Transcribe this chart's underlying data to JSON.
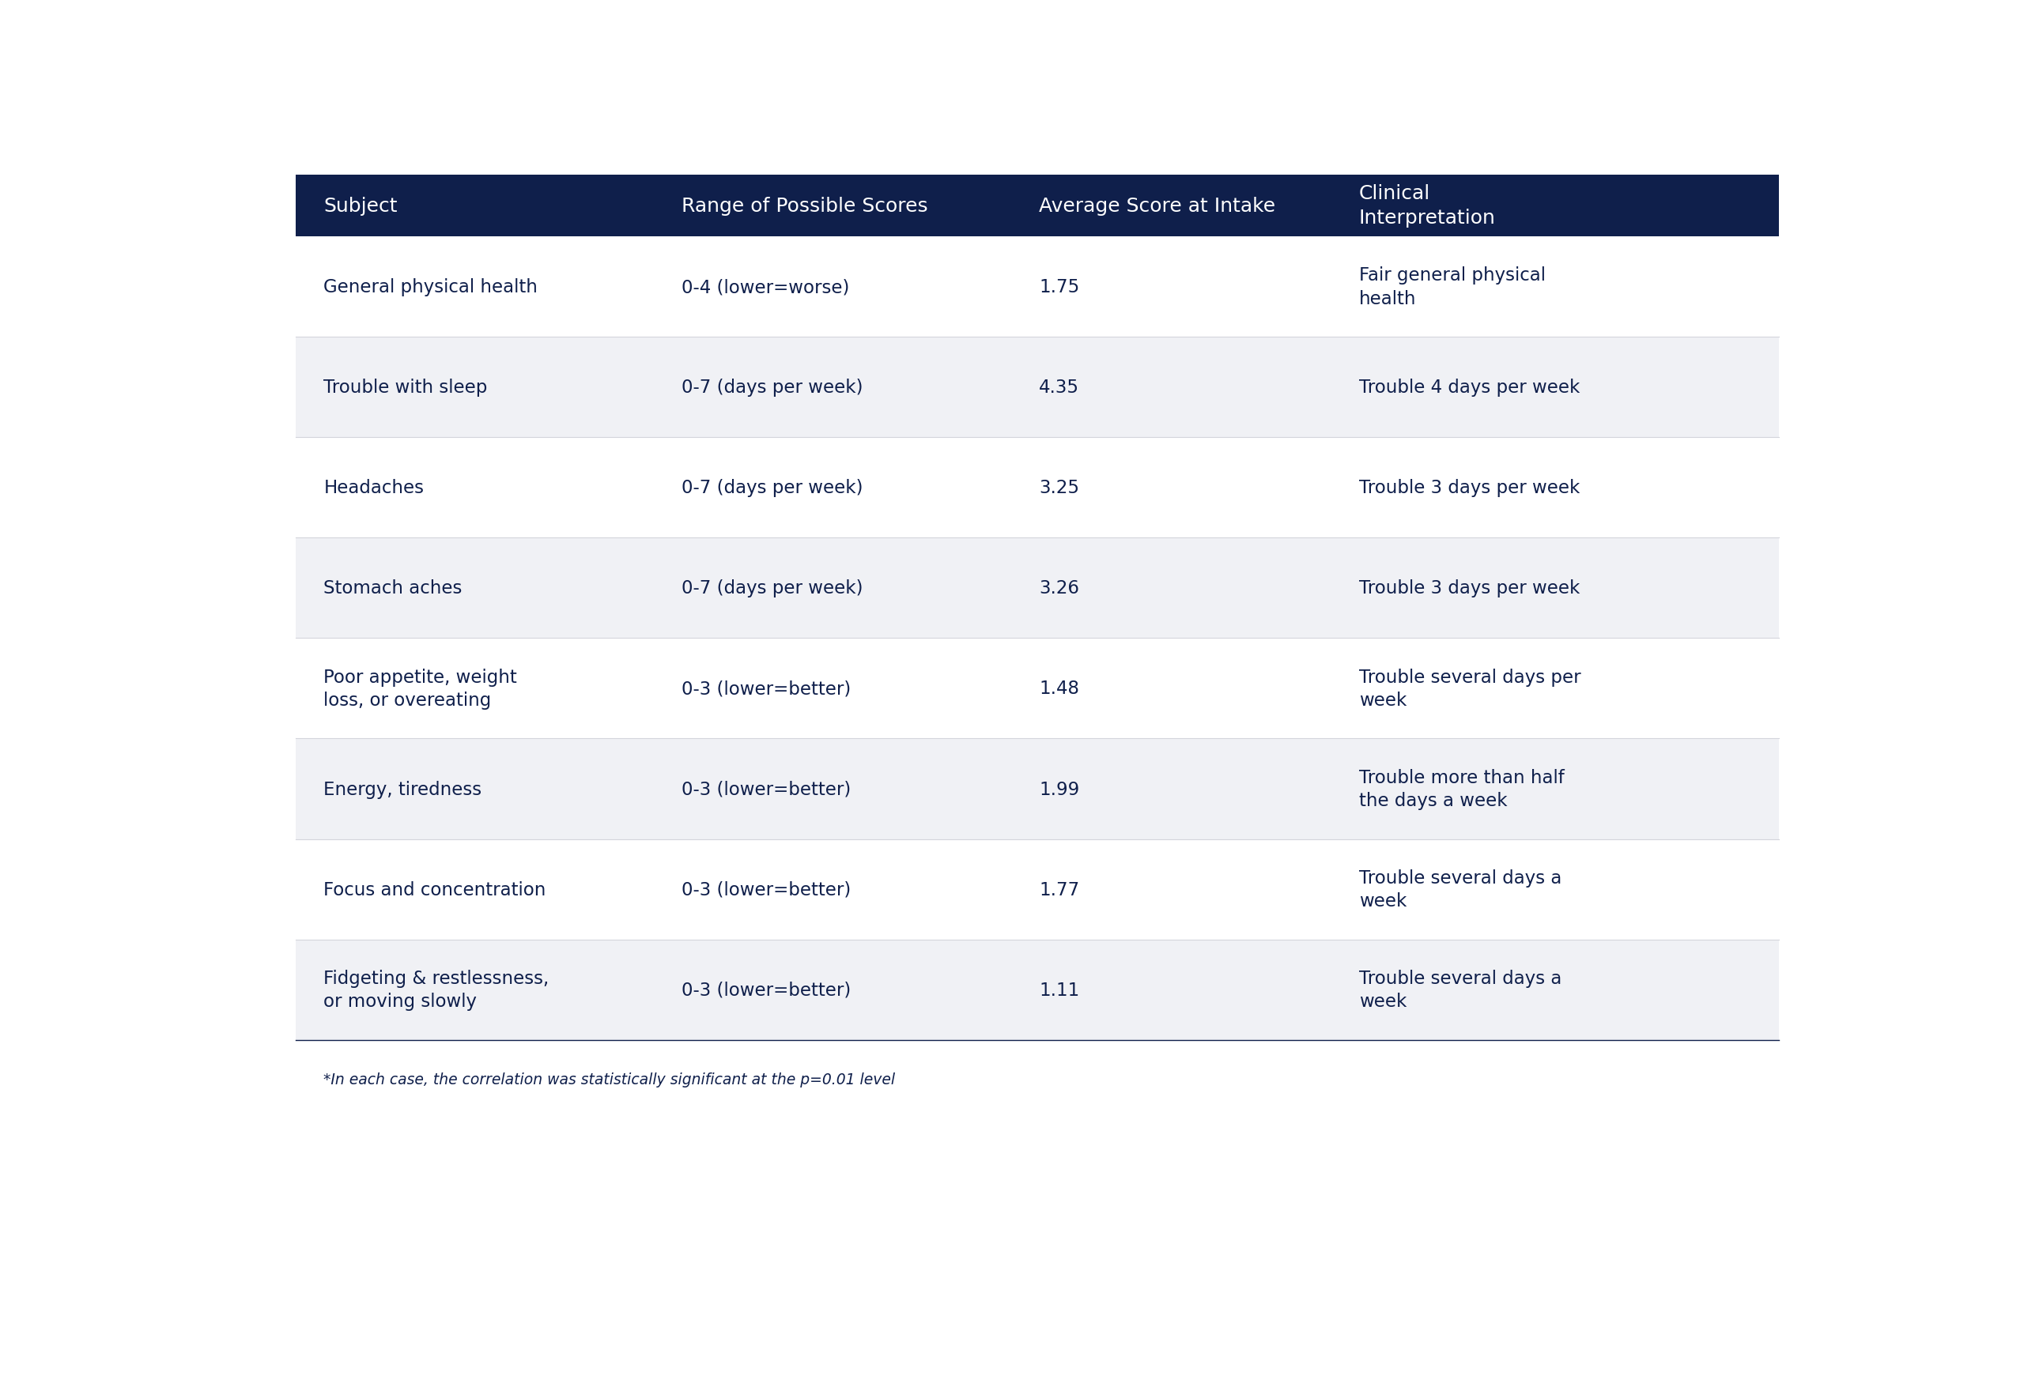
{
  "header": [
    "Subject",
    "Range of Possible Scores",
    "Average Score at Intake",
    "Clinical\nInterpretation"
  ],
  "rows": [
    {
      "subject": "General physical health",
      "range": "0-4 (lower=worse)",
      "avg": "1.75",
      "interp": "Fair general physical\nhealth",
      "bg": "#ffffff"
    },
    {
      "subject": "Trouble with sleep",
      "range": "0-7 (days per week)",
      "avg": "4.35",
      "interp": "Trouble 4 days per week",
      "bg": "#f0f1f5"
    },
    {
      "subject": "Headaches",
      "range": "0-7 (days per week)",
      "avg": "3.25",
      "interp": "Trouble 3 days per week",
      "bg": "#ffffff"
    },
    {
      "subject": "Stomach aches",
      "range": "0-7 (days per week)",
      "avg": "3.26",
      "interp": "Trouble 3 days per week",
      "bg": "#f0f1f5"
    },
    {
      "subject": "Poor appetite, weight\nloss, or overeating",
      "range": "0-3 (lower=better)",
      "avg": "1.48",
      "interp": "Trouble several days per\nweek",
      "bg": "#ffffff"
    },
    {
      "subject": "Energy, tiredness",
      "range": "0-3 (lower=better)",
      "avg": "1.99",
      "interp": "Trouble more than half\nthe days a week",
      "bg": "#f0f1f5"
    },
    {
      "subject": "Focus and concentration",
      "range": "0-3 (lower=better)",
      "avg": "1.77",
      "interp": "Trouble several days a\nweek",
      "bg": "#ffffff"
    },
    {
      "subject": "Fidgeting & restlessness,\nor moving slowly",
      "range": "0-3 (lower=better)",
      "avg": "1.11",
      "interp": "Trouble several days a\nweek",
      "bg": "#f0f1f5"
    }
  ],
  "header_bg": "#0f1f4b",
  "header_text_color": "#ffffff",
  "body_text_color": "#0f1f4b",
  "footer_text": "*In each case, the correlation was statistically significant at the p=0.01 level",
  "separator_color": "#d4d5dc",
  "bottom_line_color": "#0f1f4b"
}
